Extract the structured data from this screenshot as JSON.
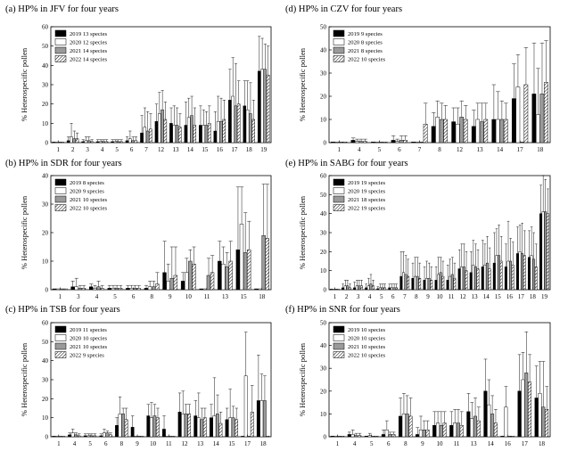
{
  "figure": {
    "description": "Heterospecific pollen percentage (HP%) at six sites over four years"
  },
  "legend_years": [
    "2019",
    "2020",
    "2021",
    "2022"
  ],
  "chart_data": [
    {
      "type": "bar",
      "panel": "a",
      "title": "(a) HP% in JFV for four years",
      "ylabel": "% Heterospecific pollen",
      "xlabel": "",
      "ylim": [
        0,
        60
      ],
      "yticks": [
        0,
        10,
        20,
        30,
        40,
        50,
        60
      ],
      "categories": [
        "1",
        "2",
        "3",
        "4",
        "5",
        "6",
        "7",
        "12",
        "13",
        "14",
        "15",
        "16",
        "17",
        "18",
        "19"
      ],
      "legend_position": "top-left",
      "series": [
        {
          "name": "2019",
          "legend_label": "13 species",
          "values": [
            0.3,
            1,
            0.5,
            0.5,
            0.5,
            1,
            5,
            11,
            10,
            9,
            9,
            6,
            22,
            19,
            37
          ],
          "errors": [
            0,
            2,
            1,
            1,
            1,
            2,
            9,
            9,
            8,
            12,
            10,
            10,
            16,
            13,
            18
          ]
        },
        {
          "name": "2020",
          "legend_label": "12 species",
          "values": [
            0.3,
            3,
            1,
            0.5,
            0.5,
            2,
            8,
            15,
            9,
            13,
            9,
            11,
            24,
            17,
            38
          ],
          "errors": [
            0,
            7,
            2,
            1,
            1,
            4,
            10,
            11,
            10,
            10,
            8,
            13,
            20,
            15,
            16
          ]
        },
        {
          "name": "2021",
          "legend_label": "14 species",
          "values": [
            0.3,
            2,
            1,
            0.5,
            0.5,
            1,
            6,
            17,
            9,
            14,
            9,
            11,
            19,
            15,
            38
          ],
          "errors": [
            0,
            4,
            2,
            1,
            1,
            2,
            10,
            10,
            9,
            10,
            7,
            12,
            22,
            16,
            13
          ]
        },
        {
          "name": "2022",
          "legend_label": "14 species",
          "values": [
            0.3,
            2,
            0.5,
            0.5,
            0.5,
            1,
            7,
            12,
            8,
            9,
            10,
            12,
            20,
            12,
            35
          ],
          "errors": [
            0,
            3,
            1,
            1,
            1,
            2,
            8,
            9,
            7,
            9,
            9,
            10,
            12,
            10,
            15
          ]
        }
      ]
    },
    {
      "type": "bar",
      "panel": "b",
      "title": "(b) HP% in SDR for four years",
      "ylabel": "% Heterospecific pollen",
      "xlabel": "",
      "ylim": [
        0,
        40
      ],
      "yticks": [
        0,
        10,
        20,
        30,
        40
      ],
      "categories": [
        "1",
        "3",
        "4",
        "5",
        "6",
        "8",
        "9",
        "10",
        "11",
        "13",
        "15",
        "18"
      ],
      "legend_position": "top-left",
      "series": [
        {
          "name": "2019",
          "legend_label": "8 species",
          "values": [
            0.3,
            1,
            1,
            0.5,
            0.5,
            0.5,
            6,
            3,
            0.3,
            10,
            14,
            0.3
          ],
          "errors": [
            0,
            2,
            1,
            1,
            1,
            1,
            11,
            3,
            0,
            7,
            22,
            0
          ]
        },
        {
          "name": "2020",
          "legend_label": "9 species",
          "values": [
            0.3,
            1,
            0.5,
            0.5,
            0.5,
            1,
            3,
            6,
            0.3,
            9,
            23,
            0.3
          ],
          "errors": [
            0,
            3,
            1,
            1,
            1,
            2,
            6,
            5,
            0,
            6,
            13,
            0
          ]
        },
        {
          "name": "2021",
          "legend_label": "10 species",
          "values": [
            0.3,
            0.5,
            1,
            0.5,
            0.5,
            1,
            4,
            10,
            5,
            8,
            13,
            19
          ],
          "errors": [
            0,
            1,
            2,
            1,
            1,
            2,
            11,
            4,
            6,
            5,
            14,
            18
          ]
        },
        {
          "name": "2022",
          "legend_label": "10 species",
          "values": [
            0.3,
            0.5,
            0.5,
            0.5,
            0.5,
            2,
            5,
            9,
            6,
            10,
            14,
            18
          ],
          "errors": [
            0,
            1,
            1,
            1,
            1,
            4,
            10,
            6,
            6,
            7,
            10,
            19
          ]
        }
      ]
    },
    {
      "type": "bar",
      "panel": "c",
      "title": "(c) HP% in TSB for four years",
      "ylabel": "% Heterospecific pollen",
      "xlabel": "",
      "ylim": [
        0,
        60
      ],
      "yticks": [
        0,
        10,
        20,
        30,
        40,
        50,
        60
      ],
      "categories": [
        "1",
        "4",
        "5",
        "6",
        "8",
        "9",
        "10",
        "11",
        "12",
        "13",
        "14",
        "15",
        "17",
        "18"
      ],
      "legend_position": "top-left",
      "series": [
        {
          "name": "2019",
          "legend_label": "11 species",
          "values": [
            0.3,
            1,
            0.5,
            0.5,
            6,
            5,
            11,
            4,
            13,
            11,
            10,
            9,
            0.3,
            19
          ],
          "errors": [
            0,
            1,
            1,
            1,
            4,
            6,
            6,
            7,
            10,
            8,
            7,
            6,
            0,
            24
          ]
        },
        {
          "name": "2020",
          "legend_label": "10 species",
          "values": [
            0.3,
            2,
            0.5,
            2,
            12,
            0.3,
            10,
            0.3,
            12,
            10,
            11,
            10,
            32,
            19
          ],
          "errors": [
            0,
            2,
            1,
            2,
            9,
            0,
            8,
            0,
            12,
            13,
            20,
            15,
            23,
            14
          ]
        },
        {
          "name": "2021",
          "legend_label": "10 species",
          "values": [
            0.3,
            1,
            0.5,
            2,
            12,
            0.3,
            11,
            0.3,
            12,
            9,
            12,
            10,
            0.3,
            19
          ],
          "errors": [
            0,
            1,
            1,
            1,
            3,
            0,
            6,
            0,
            5,
            6,
            10,
            6,
            0,
            13
          ]
        },
        {
          "name": "2022",
          "legend_label": "9 species",
          "values": [
            0.3,
            0.5,
            0.5,
            1,
            9,
            0.3,
            10,
            0.3,
            12,
            10,
            7,
            9,
            13,
            0.3
          ],
          "errors": [
            0,
            1,
            1,
            1,
            6,
            0,
            5,
            0,
            5,
            5,
            6,
            6,
            14,
            0
          ]
        }
      ]
    },
    {
      "type": "bar",
      "panel": "d",
      "title": "(d) HP% in CZV for four years",
      "ylabel": "% Heterospecific pollen",
      "xlabel": "",
      "ylim": [
        0,
        50
      ],
      "yticks": [
        0,
        10,
        20,
        30,
        40,
        50
      ],
      "categories": [
        "1",
        "4",
        "5",
        "6",
        "7",
        "8",
        "12",
        "13",
        "14",
        "17",
        "18"
      ],
      "legend_position": "top-left",
      "series": [
        {
          "name": "2019",
          "legend_label": "9 species",
          "values": [
            0.3,
            1,
            0.3,
            1,
            0.3,
            7,
            9,
            7,
            10,
            19,
            21
          ],
          "errors": [
            0,
            1,
            0,
            2,
            0,
            6,
            6,
            7,
            15,
            15,
            22
          ]
        },
        {
          "name": "2020",
          "legend_label": "8 species",
          "values": [
            0.3,
            0.5,
            0.3,
            0.5,
            0.3,
            11,
            8,
            10,
            10,
            24,
            12
          ],
          "errors": [
            0,
            1,
            0,
            1,
            0,
            7,
            7,
            7,
            12,
            14,
            20
          ]
        },
        {
          "name": "2021",
          "legend_label": "8 species",
          "values": [
            0.3,
            0.5,
            0.3,
            1,
            0.3,
            10,
            11,
            9,
            10,
            0.3,
            21
          ],
          "errors": [
            0,
            1,
            0,
            2,
            0,
            7,
            7,
            8,
            8,
            0,
            22
          ]
        },
        {
          "name": "2022",
          "legend_label": "10 species",
          "values": [
            0.3,
            0.5,
            0.3,
            1,
            8,
            10,
            10,
            10,
            10,
            25,
            26
          ],
          "errors": [
            0,
            1,
            0,
            2,
            9,
            6,
            6,
            7,
            7,
            16,
            18
          ]
        }
      ]
    },
    {
      "type": "bar",
      "panel": "e",
      "title": "(e) HP% in SABG for four years",
      "ylabel": "% Heterospecific pollen",
      "xlabel": "",
      "ylim": [
        0,
        60
      ],
      "yticks": [
        0,
        10,
        20,
        30,
        40,
        50,
        60
      ],
      "categories": [
        "1",
        "2",
        "3",
        "4",
        "5",
        "6",
        "7",
        "8",
        "9",
        "10",
        "11",
        "12",
        "13",
        "14",
        "15",
        "16",
        "17",
        "18",
        "19"
      ],
      "legend_position": "top-left",
      "series": [
        {
          "name": "2019",
          "legend_label": "19 species",
          "values": [
            0.3,
            1,
            1,
            1,
            0.5,
            1,
            7,
            6,
            5,
            5,
            5,
            11,
            9,
            12,
            14,
            12,
            19,
            17,
            40
          ],
          "errors": [
            0,
            2,
            3,
            2,
            1,
            2,
            13,
            8,
            7,
            7,
            8,
            10,
            11,
            14,
            16,
            12,
            14,
            14,
            15
          ]
        },
        {
          "name": "2020",
          "legend_label": "19 species",
          "values": [
            0.3,
            2,
            2,
            2,
            1,
            1,
            9,
            7,
            6,
            8,
            7,
            12,
            13,
            13,
            18,
            15,
            20,
            18,
            41
          ],
          "errors": [
            0,
            3,
            3,
            4,
            2,
            2,
            11,
            10,
            9,
            9,
            9,
            12,
            13,
            11,
            14,
            21,
            14,
            15,
            20
          ]
        },
        {
          "name": "2021",
          "legend_label": "18 species",
          "values": [
            0.3,
            2,
            2,
            3,
            1,
            1,
            8,
            7,
            6,
            9,
            8,
            12,
            12,
            14,
            18,
            15,
            19,
            16,
            41
          ],
          "errors": [
            0,
            3,
            3,
            5,
            2,
            2,
            10,
            10,
            8,
            8,
            9,
            12,
            12,
            14,
            16,
            12,
            16,
            14,
            17
          ]
        },
        {
          "name": "2022",
          "legend_label": "19 species",
          "values": [
            0.3,
            1,
            2,
            2,
            1,
            1,
            7,
            6,
            5,
            7,
            6,
            10,
            11,
            11,
            15,
            13,
            18,
            12,
            40
          ],
          "errors": [
            0,
            2,
            3,
            3,
            2,
            2,
            9,
            8,
            7,
            8,
            8,
            10,
            10,
            11,
            13,
            12,
            13,
            12,
            13
          ]
        }
      ]
    },
    {
      "type": "bar",
      "panel": "f",
      "title": "(f) HP% in SNR for four years",
      "ylabel": "% Heterospecific pollen",
      "xlabel": "",
      "ylim": [
        0,
        50
      ],
      "yticks": [
        0,
        10,
        20,
        30,
        40,
        50
      ],
      "categories": [
        "1",
        "4",
        "5",
        "6",
        "8",
        "9",
        "10",
        "11",
        "13",
        "14",
        "16",
        "17",
        "18"
      ],
      "legend_position": "top-left",
      "series": [
        {
          "name": "2019",
          "legend_label": "10 species",
          "values": [
            0.3,
            1,
            0.3,
            1,
            9,
            1,
            5,
            5,
            11,
            20,
            0.3,
            20,
            17
          ],
          "errors": [
            0,
            1,
            0,
            2,
            8,
            3,
            6,
            6,
            8,
            14,
            0,
            16,
            14
          ]
        },
        {
          "name": "2020",
          "legend_label": "10 species",
          "values": [
            0.3,
            1,
            0.5,
            3,
            10,
            3,
            6,
            6,
            8,
            14,
            13,
            25,
            19
          ],
          "errors": [
            0,
            2,
            1,
            4,
            9,
            6,
            5,
            6,
            7,
            11,
            9,
            12,
            14
          ]
        },
        {
          "name": "2021",
          "legend_label": "10 species",
          "values": [
            0.3,
            0.5,
            0.3,
            1,
            10,
            3,
            5,
            6,
            9,
            10,
            0.3,
            28,
            13
          ],
          "errors": [
            0,
            1,
            0,
            1,
            8,
            4,
            6,
            6,
            8,
            8,
            0,
            18,
            20
          ]
        },
        {
          "name": "2022",
          "legend_label": "10 species",
          "values": [
            0.3,
            0.5,
            0.3,
            1,
            9,
            3,
            6,
            5,
            7,
            6,
            0.3,
            24,
            12
          ],
          "errors": [
            0,
            1,
            0,
            1,
            8,
            4,
            5,
            6,
            6,
            6,
            0,
            12,
            10
          ]
        }
      ]
    }
  ]
}
